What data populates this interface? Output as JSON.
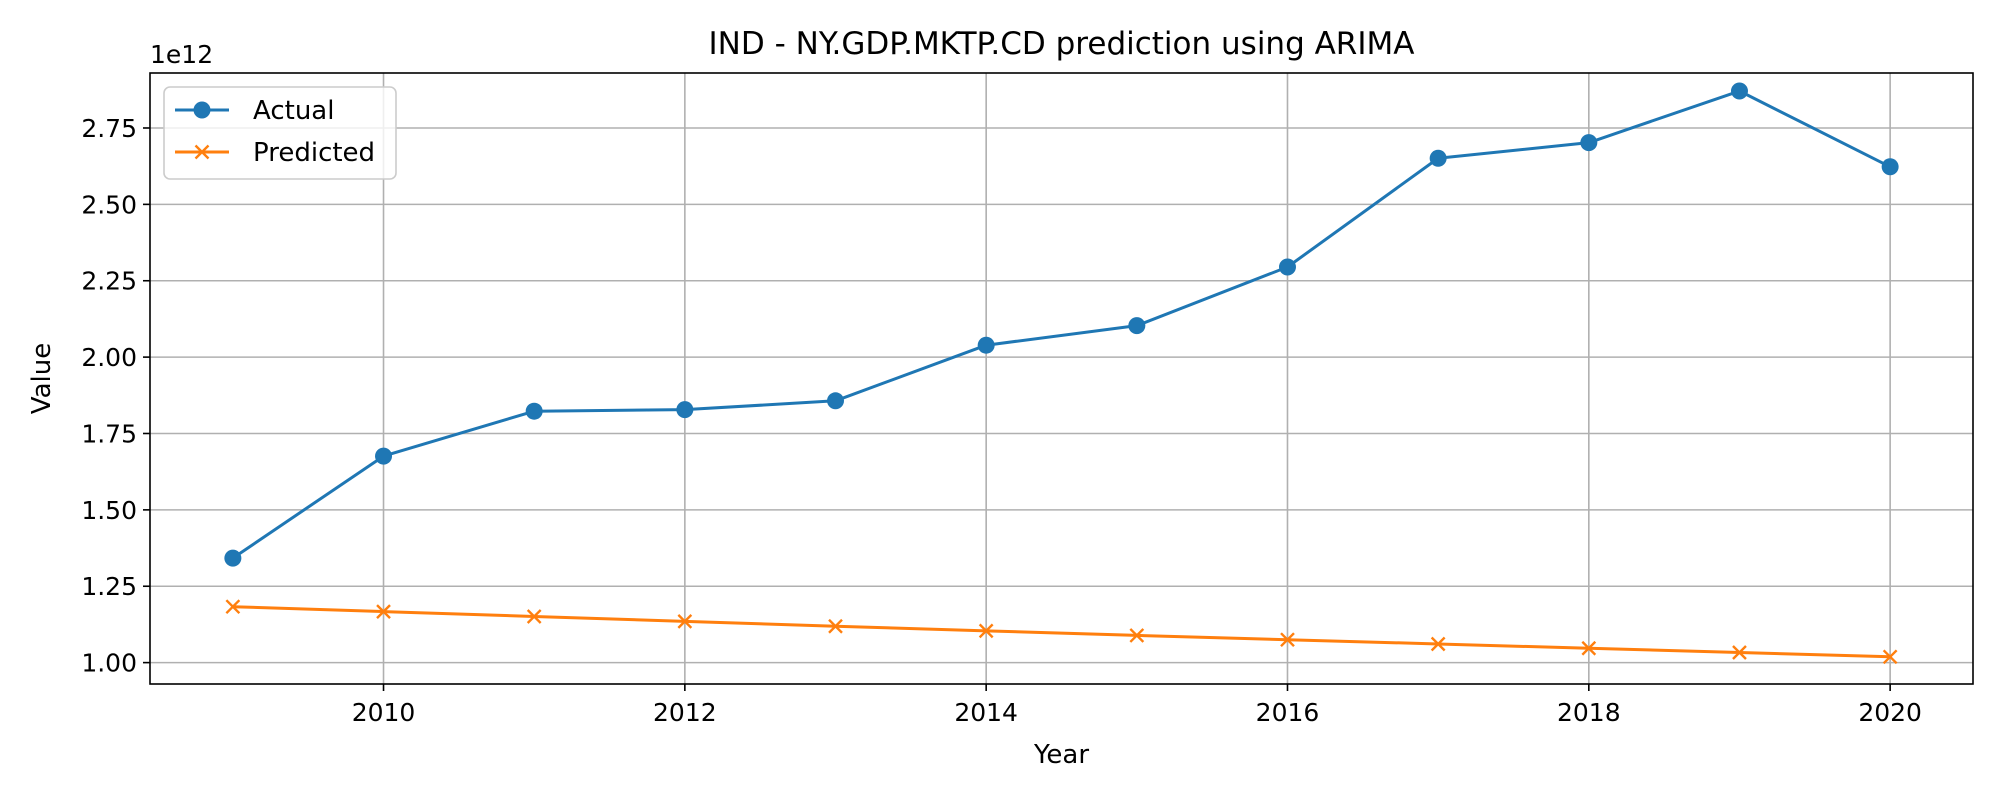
{
  "chart_data": {
    "type": "line",
    "title": "IND - NY.GDP.MKTP.CD prediction using ARIMA",
    "xlabel": "Year",
    "ylabel": "Value",
    "y_offset_label": "1e12",
    "y_scale": 1000000000000.0,
    "xlim": [
      2008.45,
      2020.55
    ],
    "ylim": [
      0.93,
      2.93
    ],
    "x_ticks": [
      2010,
      2012,
      2014,
      2016,
      2018,
      2020
    ],
    "x_tick_labels": [
      "2010",
      "2012",
      "2014",
      "2016",
      "2018",
      "2020"
    ],
    "y_ticks": [
      1.0,
      1.25,
      1.5,
      1.75,
      2.0,
      2.25,
      2.5,
      2.75
    ],
    "y_tick_labels": [
      "1.00",
      "1.25",
      "1.50",
      "1.75",
      "2.00",
      "2.25",
      "2.50",
      "2.75"
    ],
    "grid": true,
    "legend_position": "top-left",
    "x": [
      2009,
      2010,
      2011,
      2012,
      2013,
      2014,
      2015,
      2016,
      2017,
      2018,
      2019,
      2020
    ],
    "series": [
      {
        "name": "Actual",
        "marker": "circle",
        "color": "#1f77b4",
        "values": [
          1.342,
          1.676,
          1.823,
          1.828,
          1.857,
          2.039,
          2.103,
          2.295,
          2.651,
          2.702,
          2.871,
          2.623
        ]
      },
      {
        "name": "Predicted",
        "marker": "x",
        "color": "#ff7f0e",
        "values": [
          1.183,
          1.167,
          1.151,
          1.135,
          1.119,
          1.104,
          1.089,
          1.075,
          1.061,
          1.047,
          1.033,
          1.019
        ]
      }
    ]
  }
}
